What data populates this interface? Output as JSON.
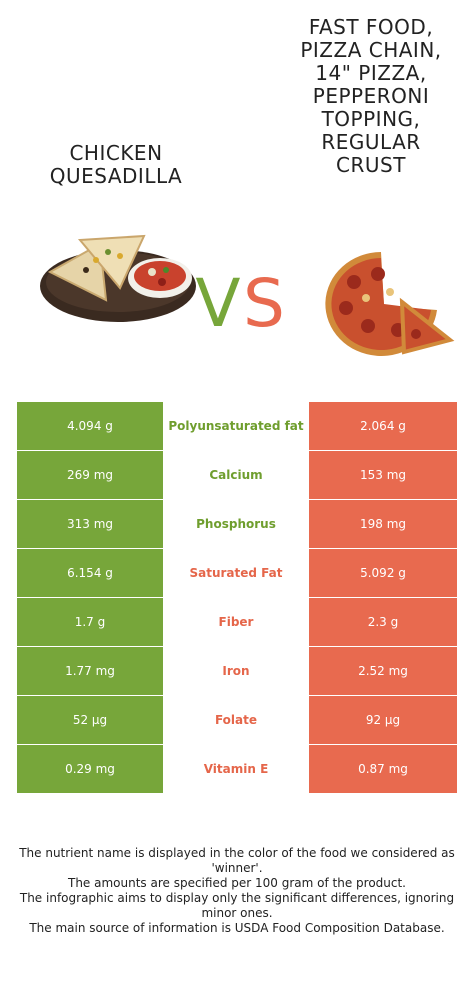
{
  "left_food": {
    "title": "CHICKEN\nQUESADILLA",
    "color": "#77a63a"
  },
  "right_food": {
    "title": "FAST FOOD,\nPIZZA CHAIN,\n14\" PIZZA,\nPEPPERONI\nTOPPING,\nREGULAR\nCRUST",
    "color": "#e86a4f"
  },
  "vs": {
    "v": "V",
    "s": "S"
  },
  "rows": [
    {
      "left": "4.094 g",
      "nutrient": "Polyunsaturated fat",
      "right": "2.064 g",
      "winner": "left"
    },
    {
      "left": "269 mg",
      "nutrient": "Calcium",
      "right": "153 mg",
      "winner": "left"
    },
    {
      "left": "313 mg",
      "nutrient": "Phosphorus",
      "right": "198 mg",
      "winner": "left"
    },
    {
      "left": "6.154 g",
      "nutrient": "Saturated Fat",
      "right": "5.092 g",
      "winner": "right"
    },
    {
      "left": "1.7 g",
      "nutrient": "Fiber",
      "right": "2.3 g",
      "winner": "right"
    },
    {
      "left": "1.77 mg",
      "nutrient": "Iron",
      "right": "2.52 mg",
      "winner": "right"
    },
    {
      "left": "52 µg",
      "nutrient": "Folate",
      "right": "92 µg",
      "winner": "right"
    },
    {
      "left": "0.29 mg",
      "nutrient": "Vitamin E",
      "right": "0.87 mg",
      "winner": "right"
    }
  ],
  "footnote": [
    "The nutrient name is displayed in the color of the food we considered as 'winner'.",
    "The amounts are specified per 100 gram of the product.",
    "The infographic aims to display only the significant differences, ignoring minor ones.",
    "The main source of information is USDA Food Composition Database."
  ]
}
